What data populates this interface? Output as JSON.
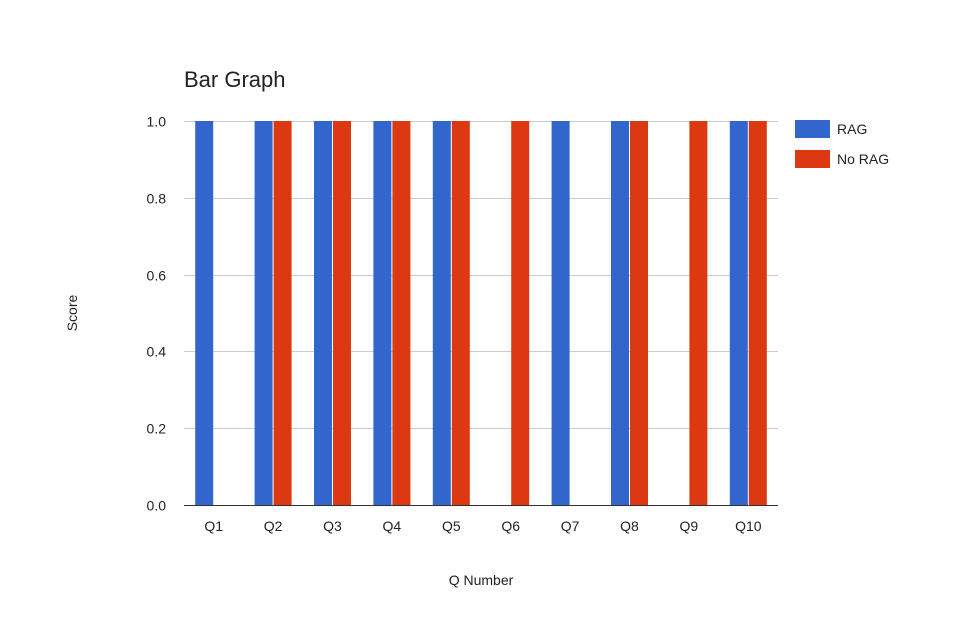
{
  "chart_data": {
    "type": "bar",
    "title": "Bar Graph",
    "xlabel": "Q Number",
    "ylabel": "Score",
    "ylim": [
      0,
      1
    ],
    "yticks": [
      "0.0",
      "0.2",
      "0.4",
      "0.6",
      "0.8",
      "1.0"
    ],
    "categories": [
      "Q1",
      "Q2",
      "Q3",
      "Q4",
      "Q5",
      "Q6",
      "Q7",
      "Q8",
      "Q9",
      "Q10"
    ],
    "series": [
      {
        "name": "RAG",
        "color": "#3366cc",
        "values": [
          1,
          1,
          1,
          1,
          1,
          0,
          1,
          1,
          0,
          1
        ]
      },
      {
        "name": "No RAG",
        "color": "#dc3912",
        "values": [
          0,
          1,
          1,
          1,
          1,
          1,
          0,
          1,
          1,
          1
        ]
      }
    ],
    "grid": true,
    "legend": "right"
  }
}
